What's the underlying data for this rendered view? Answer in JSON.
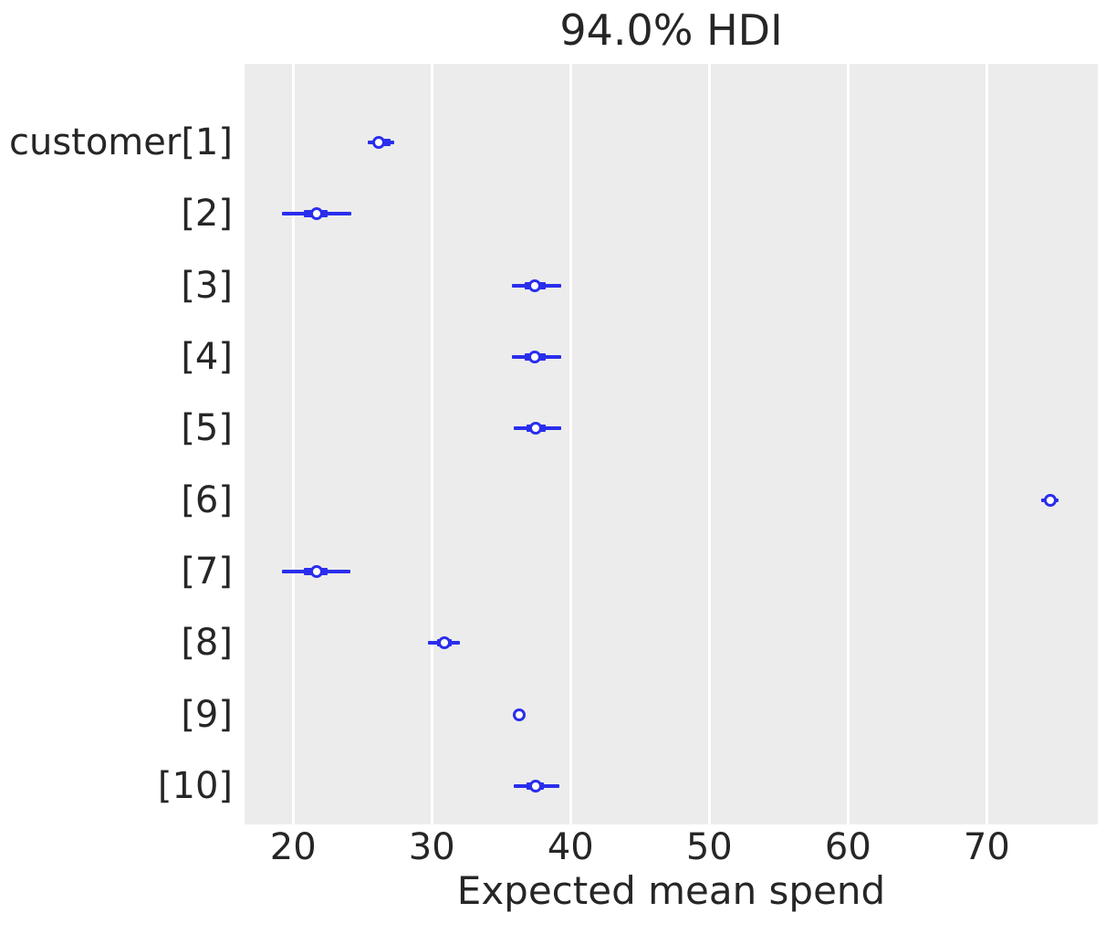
{
  "title": "94.0% HDI",
  "x_axis_label": "Expected mean spend",
  "colors": {
    "accent": "#2a2eec",
    "plot_background": "#ececec",
    "gridline": "#ffffff",
    "text": "#262626",
    "figure_background": "#ffffff",
    "marker_fill": "#ffffff"
  },
  "chart_data": {
    "type": "forest",
    "title": "94.0% HDI",
    "xlabel": "Expected mean spend",
    "interval_label": "94.0% HDI",
    "xlim": [
      16.5,
      78.0
    ],
    "xticks": [
      20,
      30,
      40,
      50,
      60,
      70
    ],
    "grid": "vertical white gridlines on gray panel",
    "legend": "none",
    "rows": [
      {
        "label": "customer[1]",
        "median": 26.2,
        "hdi": [
          25.4,
          27.3
        ],
        "quartile": [
          25.9,
          27.0
        ]
      },
      {
        "label": "[2]",
        "median": 21.7,
        "hdi": [
          19.2,
          24.2
        ],
        "quartile": [
          20.8,
          22.5
        ]
      },
      {
        "label": "[3]",
        "median": 37.4,
        "hdi": [
          35.8,
          39.3
        ],
        "quartile": [
          36.7,
          38.2
        ]
      },
      {
        "label": "[4]",
        "median": 37.4,
        "hdi": [
          35.8,
          39.3
        ],
        "quartile": [
          36.7,
          38.2
        ]
      },
      {
        "label": "[5]",
        "median": 37.5,
        "hdi": [
          35.9,
          39.3
        ],
        "quartile": [
          36.8,
          38.2
        ]
      },
      {
        "label": "[6]",
        "median": 74.6,
        "hdi": [
          73.9,
          75.2
        ],
        "quartile": [
          74.2,
          74.9
        ]
      },
      {
        "label": "[7]",
        "median": 21.7,
        "hdi": [
          19.2,
          24.1
        ],
        "quartile": [
          20.8,
          22.5
        ]
      },
      {
        "label": "[8]",
        "median": 30.9,
        "hdi": [
          29.7,
          32.0
        ],
        "quartile": [
          30.4,
          31.4
        ]
      },
      {
        "label": "[9]",
        "median": 36.3,
        "hdi": [
          36.1,
          36.5
        ],
        "quartile": [
          36.2,
          36.4
        ]
      },
      {
        "label": "[10]",
        "median": 37.5,
        "hdi": [
          35.9,
          39.2
        ],
        "quartile": [
          36.8,
          38.1
        ]
      }
    ]
  }
}
